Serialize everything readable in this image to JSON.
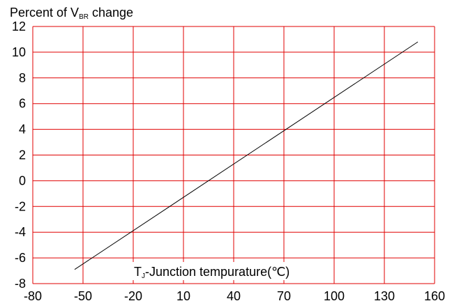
{
  "chart_data": {
    "type": "line",
    "ylabel": {
      "prefix": "Percent of V",
      "subscript": "BR",
      "suffix": " change"
    },
    "xlabel": {
      "prefix": "T",
      "subscript": "J",
      "suffix": "-Junction tempurature(℃)"
    },
    "xlim": [
      -80,
      160
    ],
    "ylim": [
      -8,
      12
    ],
    "xticks": [
      -80,
      -50,
      -20,
      10,
      40,
      70,
      100,
      130,
      160
    ],
    "yticks": [
      -8,
      -6,
      -4,
      -2,
      0,
      2,
      4,
      6,
      8,
      10,
      12
    ],
    "grid": true,
    "colors": {
      "grid": "#e00000",
      "line": "#000000"
    },
    "series": [
      {
        "x": [
          -55,
          150
        ],
        "y": [
          -6.9,
          10.8
        ]
      }
    ]
  }
}
